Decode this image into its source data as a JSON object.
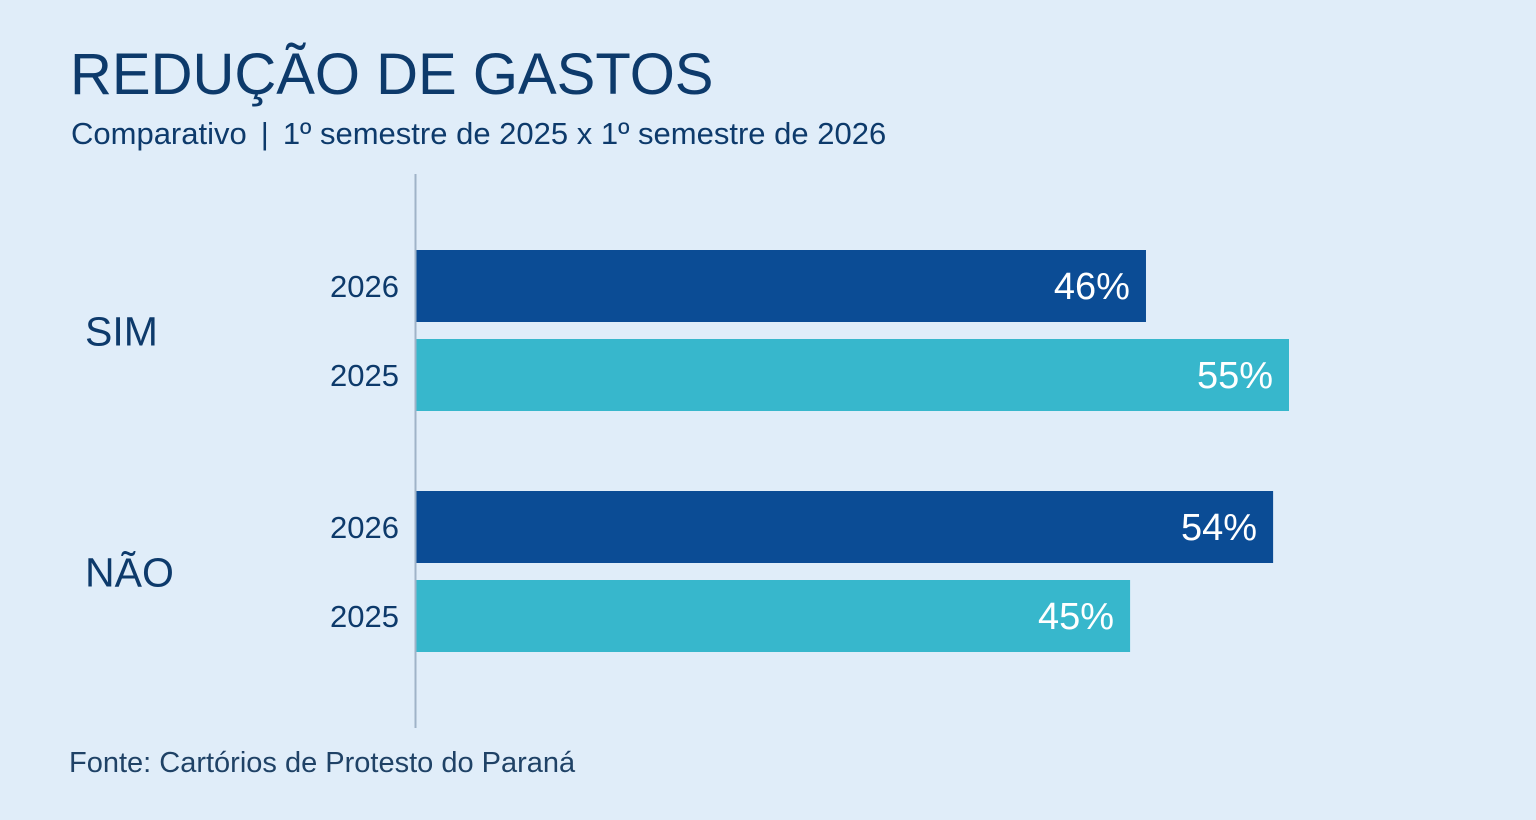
{
  "title": "REDUÇÃO DE GASTOS",
  "subtitle": {
    "left": "Comparativo",
    "separator": "|",
    "right": "1º semestre de 2025 x 1º semestre de 2026"
  },
  "source": "Fonte: Cartórios de Protesto do Paraná",
  "colors": {
    "series_2026": "#0b4c95",
    "series_2025": "#37b7cc",
    "text": "#0d3a6b",
    "axis": "#9fb3c8",
    "background": "#e0edf9",
    "bar_label": "#ffffff"
  },
  "chart_data": {
    "type": "bar",
    "orientation": "horizontal",
    "categories": [
      "SIM",
      "NÃO"
    ],
    "series": [
      {
        "name": "2026",
        "values": [
          46,
          54
        ],
        "labels": [
          "46%",
          "54%"
        ],
        "color": "#0b4c95"
      },
      {
        "name": "2025",
        "values": [
          55,
          45
        ],
        "labels": [
          "55%",
          "45%"
        ],
        "color": "#37b7cc"
      }
    ],
    "unit": "%",
    "xlim": [
      0,
      60
    ],
    "grid": false,
    "legend": "none"
  }
}
